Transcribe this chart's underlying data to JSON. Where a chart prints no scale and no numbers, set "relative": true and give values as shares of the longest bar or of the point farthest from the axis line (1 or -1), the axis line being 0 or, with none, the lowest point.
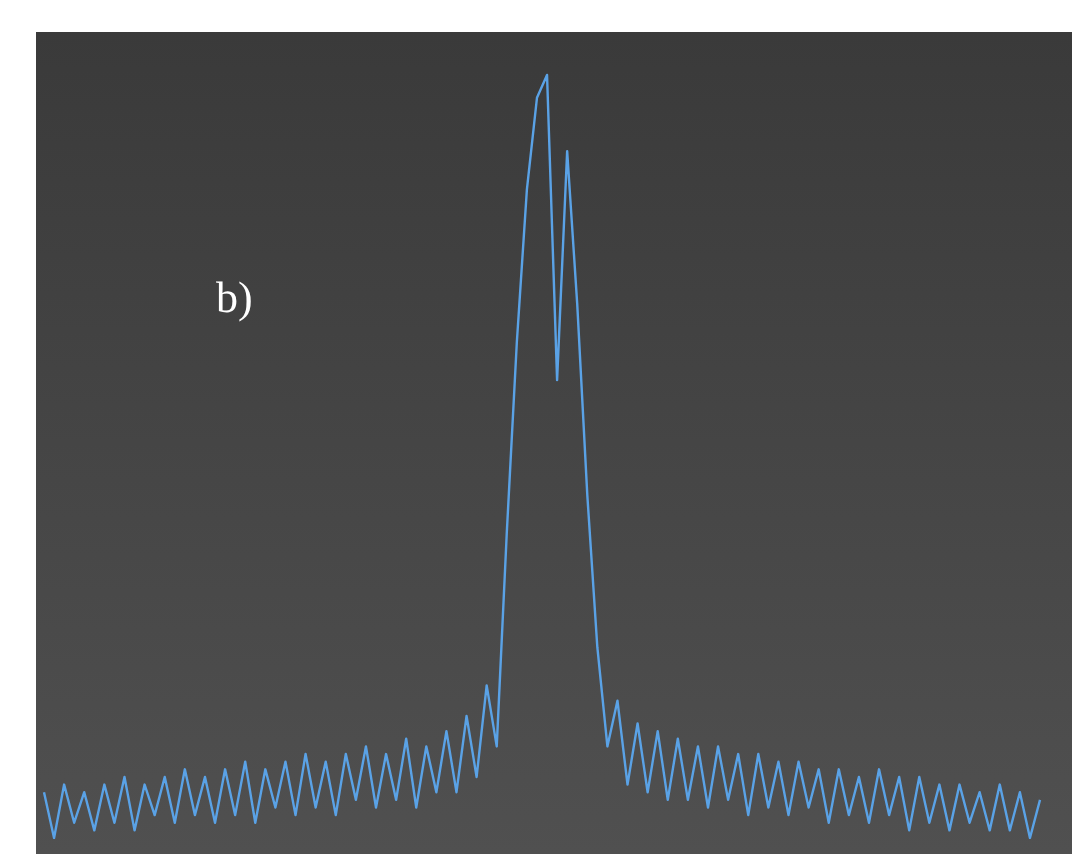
{
  "chart_data": {
    "type": "line",
    "relative": true,
    "marker": "none",
    "annotations": [
      "b)"
    ],
    "categories": [
      null,
      null,
      null,
      null,
      null,
      null,
      null,
      null,
      null,
      null,
      null,
      null,
      null,
      null,
      null,
      null,
      null,
      null,
      null,
      null,
      null,
      null,
      null,
      null,
      null,
      null,
      null,
      null,
      null,
      null,
      null,
      null,
      null,
      null,
      null,
      null,
      null,
      null,
      null,
      null,
      null,
      null,
      null,
      null,
      null,
      null,
      null,
      null,
      null,
      null,
      null,
      null,
      null,
      null,
      null,
      null,
      null,
      null,
      null,
      null,
      null,
      null,
      null,
      null,
      null,
      null,
      null,
      null,
      null,
      null,
      null,
      null,
      null,
      null,
      null,
      null,
      null,
      null,
      null,
      null,
      null,
      null,
      null,
      null,
      null,
      null,
      null,
      null,
      null,
      null,
      null,
      null,
      null,
      null,
      null,
      null,
      null,
      null,
      null,
      null
    ],
    "series": [
      {
        "color": "#5aa2e6",
        "values": [
          0.06,
          0.0,
          0.07,
          0.02,
          0.06,
          0.01,
          0.07,
          0.02,
          0.08,
          0.01,
          0.07,
          0.03,
          0.08,
          0.02,
          0.09,
          0.03,
          0.08,
          0.02,
          0.09,
          0.03,
          0.1,
          0.02,
          0.09,
          0.04,
          0.1,
          0.03,
          0.11,
          0.04,
          0.1,
          0.03,
          0.11,
          0.05,
          0.12,
          0.04,
          0.11,
          0.05,
          0.13,
          0.04,
          0.12,
          0.06,
          0.14,
          0.06,
          0.16,
          0.08,
          0.2,
          0.12,
          0.4,
          0.65,
          0.85,
          0.97,
          1.0,
          0.6,
          0.9,
          0.7,
          0.45,
          0.25,
          0.12,
          0.18,
          0.07,
          0.15,
          0.06,
          0.14,
          0.05,
          0.13,
          0.05,
          0.12,
          0.04,
          0.12,
          0.05,
          0.11,
          0.03,
          0.11,
          0.04,
          0.1,
          0.03,
          0.1,
          0.04,
          0.09,
          0.02,
          0.09,
          0.03,
          0.08,
          0.02,
          0.09,
          0.03,
          0.08,
          0.01,
          0.08,
          0.02,
          0.07,
          0.01,
          0.07,
          0.02,
          0.06,
          0.01,
          0.07,
          0.01,
          0.06,
          0.0,
          0.05
        ]
      }
    ]
  }
}
